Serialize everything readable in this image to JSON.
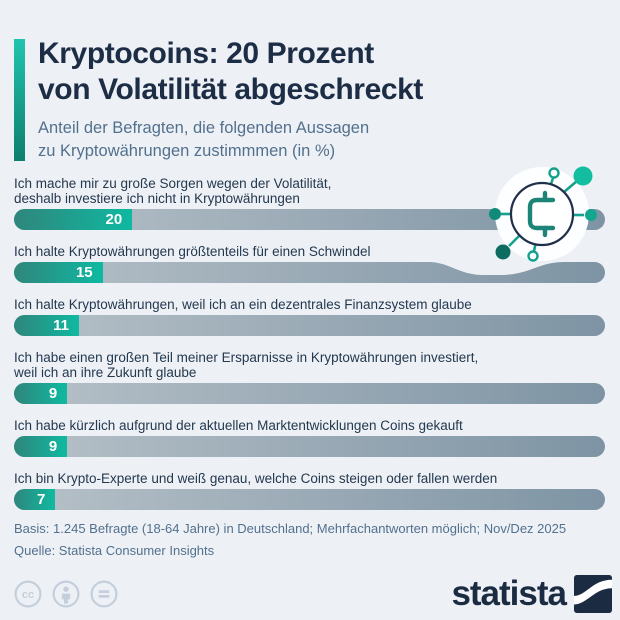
{
  "header": {
    "title_lines": [
      "Kryptocoins: 20 Prozent",
      "von Volatilität abgeschreckt"
    ],
    "subtitle_lines": [
      "Anteil der Befragten, die folgenden Aussagen",
      "zu Kryptowährungen zustimmmen (in %)"
    ]
  },
  "chart_data": {
    "type": "bar",
    "orientation": "horizontal",
    "value_unit": "%",
    "value_axis_max": 100,
    "grid": false,
    "legend": false,
    "title": "Kryptocoins: 20 Prozent von Volatilität abgeschreckt",
    "categories": [
      "Ich mache mir zu große Sorgen wegen der Volatilität, deshalb investiere ich nicht in Kryptowährungen",
      "Ich halte Kryptowährungen größtenteils für einen Schwindel",
      "Ich halte Kryptowährungen, weil ich an ein dezentrales Finanzsystem glaube",
      "Ich habe einen großen Teil meiner Ersparnisse in Kryptowährungen investiert, weil ich an ihre Zukunft glaube",
      "Ich habe kürzlich aufgrund der aktuellen Marktentwicklungen Coins gekauft",
      "Ich bin Krypto-Experte und weiß genau, welche Coins steigen oder fallen werden"
    ],
    "values": [
      20,
      15,
      11,
      9,
      9,
      7
    ],
    "rows": [
      {
        "label_lines": [
          "Ich mache mir zu große Sorgen wegen der Volatilität,",
          "deshalb investiere ich nicht in Kryptowährungen"
        ],
        "value": 20
      },
      {
        "label_lines": [
          "Ich halte Kryptowährungen größtenteils für einen Schwindel"
        ],
        "value": 15
      },
      {
        "label_lines": [
          "Ich halte Kryptowährungen, weil ich an ein dezentrales Finanzsystem glaube"
        ],
        "value": 11
      },
      {
        "label_lines": [
          "Ich habe einen großen Teil meiner Ersparnisse in Kryptowährungen investiert,",
          "weil ich an ihre Zukunft glaube"
        ],
        "value": 9
      },
      {
        "label_lines": [
          "Ich habe kürzlich aufgrund der aktuellen Marktentwicklungen Coins gekauft"
        ],
        "value": 9
      },
      {
        "label_lines": [
          "Ich bin Krypto-Experte und weiß genau, welche Coins steigen oder fallen werden"
        ],
        "value": 7
      }
    ]
  },
  "footer": {
    "basis": "Basis: 1.245 Befragte (18-64 Jahre) in Deutschland; Mehrfachantworten möglich; Nov/Dez 2025",
    "source": "Quelle: Statista Consumer Insights"
  },
  "branding": {
    "logo_text": "statista"
  },
  "icons": {
    "coin": "crypto-coin-network-icon",
    "cc": "cc-license-icon",
    "attribution": "cc-attribution-icon",
    "no_derivatives": "cc-equal-icon",
    "logo_mark": "statista-logo-mark"
  },
  "colors": {
    "background": "#edf1f6",
    "title": "#1d2d45",
    "subtitle": "#53708d",
    "label": "#24384e",
    "accent_teal_light": "#20c4af",
    "accent_teal_dark": "#0e7f6e",
    "bar_fill_start": "#2f867c",
    "bar_fill_end": "#0fb9a1",
    "bar_track_start": "#b7c1c8",
    "bar_track_end": "#7e94a4",
    "value_text": "#ffffff",
    "navy": "#1b2b42",
    "cc_gray": "#c4cfdb"
  }
}
